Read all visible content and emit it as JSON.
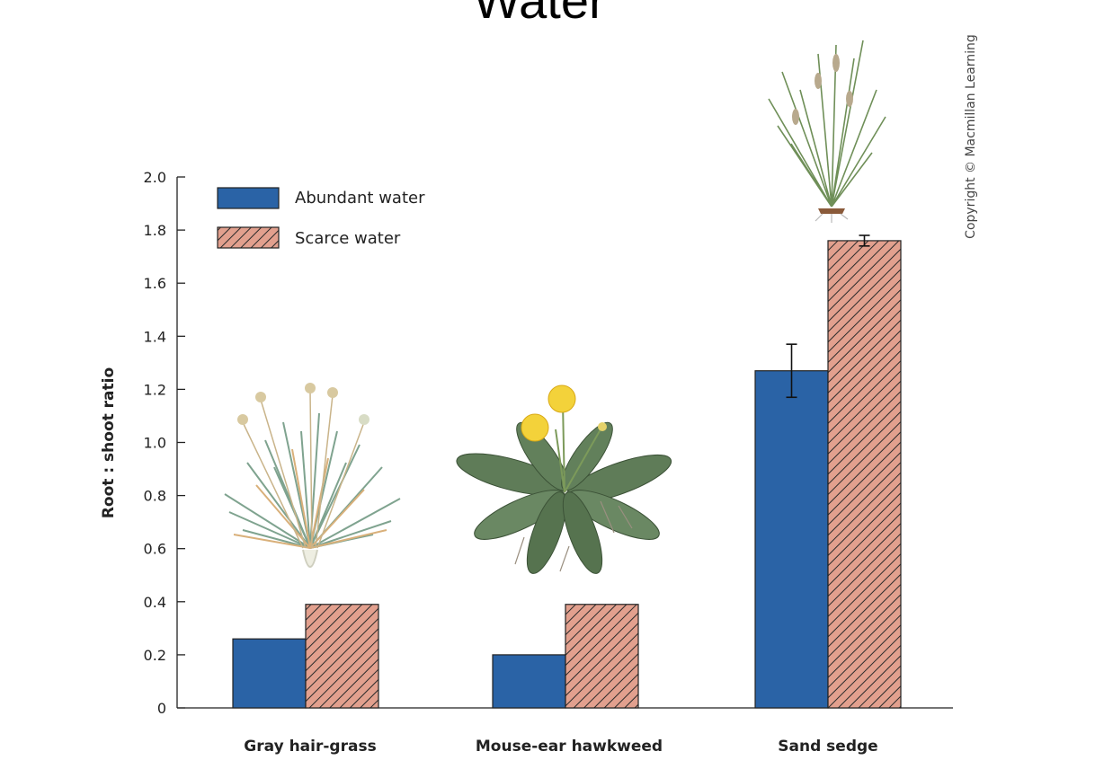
{
  "slide_title": "Water",
  "copyright": "Copyright © Macmillan Learning",
  "colors": {
    "abundant": "#2a63a6",
    "scarce": "#e2a08e",
    "hatch": "#2a2a2a",
    "axis": "#222222"
  },
  "icons": [
    "gray-hair-grass-illustration",
    "mouse-ear-hawkweed-illustration",
    "sand-sedge-illustration"
  ],
  "chart_data": {
    "type": "bar",
    "title": "",
    "xlabel": "",
    "ylabel": "Root : shoot ratio",
    "ylim": [
      0,
      2.0
    ],
    "yticks": [
      "0",
      "0.2",
      "0.4",
      "0.6",
      "0.8",
      "1.0",
      "1.2",
      "1.4",
      "1.6",
      "1.8",
      "2.0"
    ],
    "categories": [
      "Gray hair-grass",
      "Mouse-ear hawkweed",
      "Sand sedge"
    ],
    "legend_position": "top-left",
    "series": [
      {
        "name": "Abundant water",
        "values": [
          0.26,
          0.2,
          1.27
        ],
        "errors": [
          0,
          0,
          0.1
        ]
      },
      {
        "name": "Scarce water",
        "values": [
          0.39,
          0.39,
          1.76
        ],
        "errors": [
          0,
          0,
          0.02
        ]
      }
    ]
  }
}
